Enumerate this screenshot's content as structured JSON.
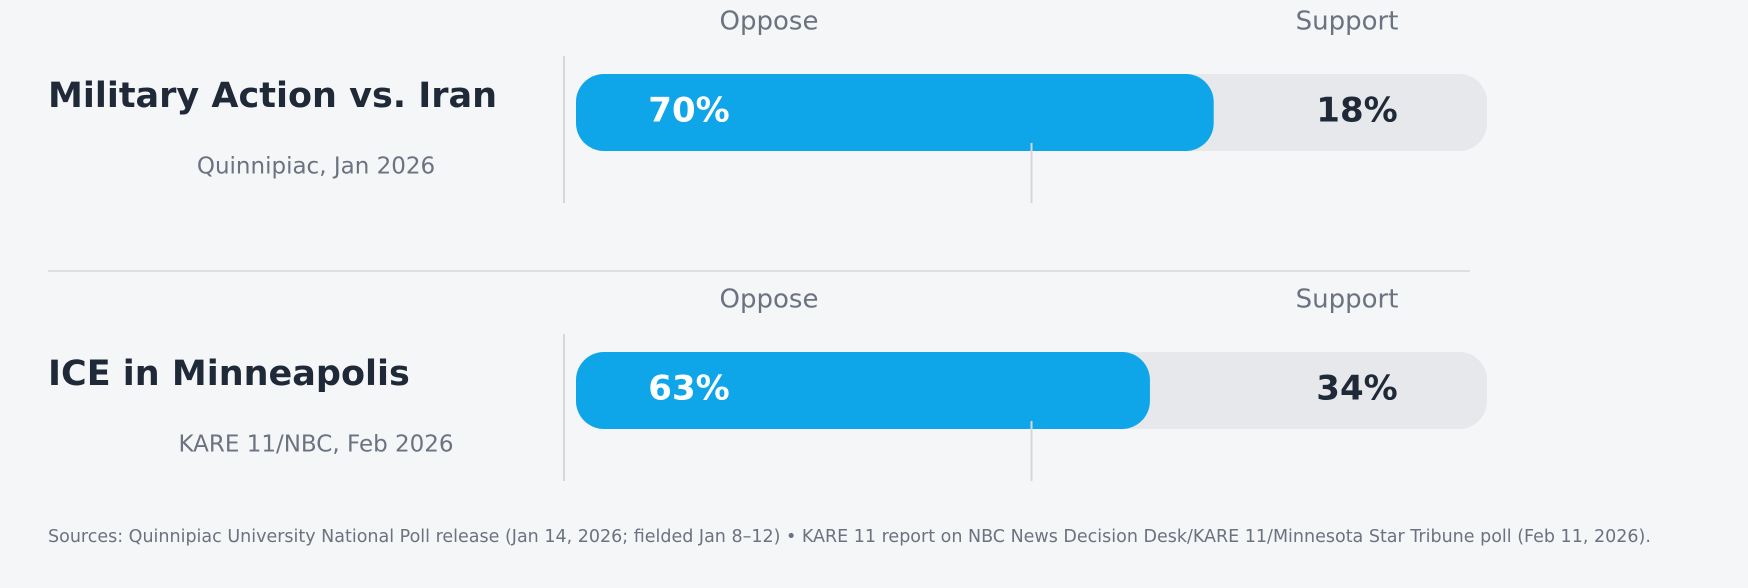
{
  "rows": [
    {
      "title": "Military Action vs. Iran",
      "source": "Quinnipiac, Jan 2026",
      "labels": [
        "Oppose",
        "Support"
      ],
      "values": [
        70,
        18
      ],
      "value_labels": [
        "70%",
        "18%"
      ]
    },
    {
      "title": "ICE in Minneapolis",
      "source": "KARE 11/NBC, Feb 2026",
      "labels": [
        "Oppose",
        "Support"
      ],
      "values": [
        63,
        34
      ],
      "value_labels": [
        "63%",
        "34%"
      ]
    }
  ],
  "footer": "Sources: Quinnipiac University National Poll release (Jan 14, 2026; fielded Jan 8–12) • KARE 11 report on NBC News Decision Desk/KARE 11/Minnesota Star Tribune poll (Feb 11, 2026)."
}
